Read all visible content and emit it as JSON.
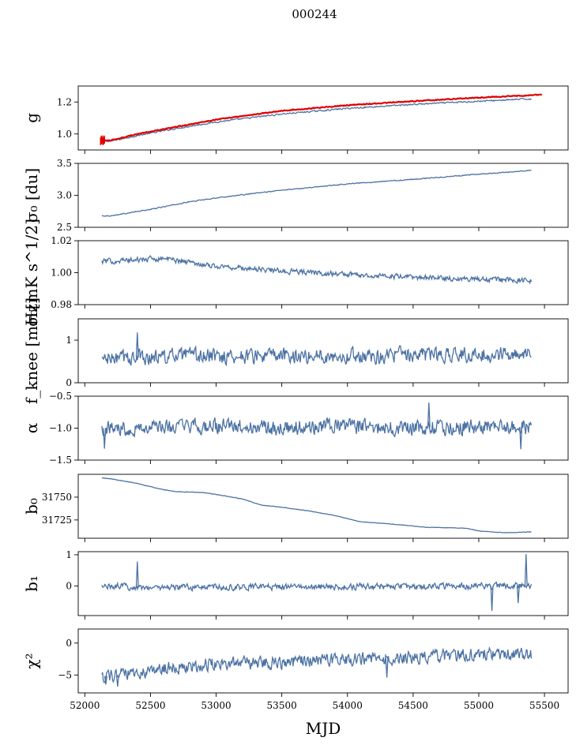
{
  "figure": {
    "suptitle": "000244",
    "xlabel": "MJD"
  },
  "colors": {
    "series": "#4c72a4",
    "overlay": "#e00000",
    "axes": "#000000"
  },
  "chart_data": [
    {
      "type": "line",
      "id": "g",
      "ylabel": "g",
      "xlim": [
        51950,
        55680
      ],
      "ylim": [
        0.9,
        1.3
      ],
      "yticks": [
        1.0,
        1.2
      ],
      "ytick_labels": [
        "1.0",
        "1.2"
      ],
      "series": [
        {
          "name": "",
          "color": "#4c72a4",
          "x": [
            52130,
            52200,
            52400,
            52700,
            53000,
            53500,
            54000,
            54500,
            55000,
            55400
          ],
          "y": [
            0.955,
            0.955,
            0.99,
            1.035,
            1.075,
            1.125,
            1.16,
            1.185,
            1.205,
            1.22
          ]
        },
        {
          "name": "",
          "color": "#e00000",
          "x": [
            52130,
            52200,
            52400,
            52700,
            53000,
            53500,
            54000,
            54500,
            55000,
            55480
          ],
          "y": [
            0.96,
            0.96,
            1.0,
            1.045,
            1.09,
            1.145,
            1.18,
            1.205,
            1.228,
            1.245
          ]
        }
      ]
    },
    {
      "type": "line",
      "id": "sigma0_du",
      "ylabel": "σ₀ [du]",
      "xlim": [
        51950,
        55680
      ],
      "ylim": [
        2.5,
        3.5
      ],
      "yticks": [
        2.5,
        3.0,
        3.5
      ],
      "ytick_labels": [
        "2.5",
        "3.0",
        "3.5"
      ],
      "series": [
        {
          "name": "",
          "color": "#4c72a4",
          "x": [
            52130,
            52200,
            52500,
            52800,
            53000,
            53500,
            54000,
            54500,
            55000,
            55400
          ],
          "y": [
            2.68,
            2.68,
            2.78,
            2.9,
            2.96,
            3.08,
            3.18,
            3.25,
            3.33,
            3.39
          ]
        }
      ]
    },
    {
      "type": "line",
      "id": "sigma0_mk",
      "ylabel": "σ₀[mK s^1/2]",
      "xlim": [
        51950,
        55680
      ],
      "ylim": [
        0.98,
        1.02
      ],
      "yticks": [
        0.98,
        1.0,
        1.02
      ],
      "ytick_labels": [
        "0.98",
        "1.00",
        "1.02"
      ],
      "series": [
        {
          "name": "",
          "color": "#4c72a4",
          "x": [
            52130,
            52400,
            52600,
            53000,
            53500,
            54000,
            54500,
            55000,
            55400
          ],
          "y": [
            1.007,
            1.008,
            1.009,
            1.004,
            1.001,
            0.999,
            0.997,
            0.996,
            0.995
          ]
        }
      ]
    },
    {
      "type": "line",
      "id": "fknee",
      "ylabel": "f_knee [mHz]",
      "xlim": [
        51950,
        55680
      ],
      "ylim": [
        0,
        1.5
      ],
      "yticks": [
        0,
        1
      ],
      "ytick_labels": [
        "0",
        "1"
      ],
      "series": [
        {
          "name": "",
          "color": "#4c72a4",
          "x": [
            52130,
            52400,
            52700,
            53000,
            53500,
            54000,
            54500,
            55000,
            55400
          ],
          "y": [
            0.55,
            0.6,
            0.62,
            0.62,
            0.63,
            0.64,
            0.65,
            0.66,
            0.67
          ]
        }
      ]
    },
    {
      "type": "line",
      "id": "alpha",
      "ylabel": "α",
      "xlim": [
        51950,
        55680
      ],
      "ylim": [
        -1.5,
        -0.5
      ],
      "yticks": [
        -1.5,
        -1.0,
        -0.5
      ],
      "ytick_labels": [
        "−1.5",
        "−1.0",
        "−0.5"
      ],
      "series": [
        {
          "name": "",
          "color": "#4c72a4",
          "x": [
            52130,
            52500,
            53000,
            53500,
            54000,
            54500,
            55000,
            55400
          ],
          "y": [
            -1.0,
            -0.99,
            -0.98,
            -0.99,
            -0.98,
            -0.99,
            -0.98,
            -0.98
          ]
        }
      ]
    },
    {
      "type": "line",
      "id": "b0",
      "ylabel": "b₀",
      "xlim": [
        51950,
        55680
      ],
      "ylim": [
        31705,
        31775
      ],
      "yticks": [
        31725,
        31750
      ],
      "ytick_labels": [
        "31725",
        "31750"
      ],
      "series": [
        {
          "name": "",
          "color": "#4c72a4",
          "x": [
            52130,
            52200,
            52400,
            52600,
            52700,
            52900,
            53000,
            53200,
            53350,
            53500,
            53700,
            53900,
            54100,
            54300,
            54600,
            54900,
            55000,
            55200,
            55400
          ],
          "y": [
            31771,
            31770,
            31765,
            31758,
            31756,
            31755,
            31753,
            31748,
            31741,
            31739,
            31735,
            31730,
            31723,
            31721,
            31717,
            31716,
            31713,
            31711,
            31712
          ]
        }
      ]
    },
    {
      "type": "line",
      "id": "b1",
      "ylabel": "b₁",
      "xlim": [
        51950,
        55680
      ],
      "ylim": [
        -0.95,
        1.1
      ],
      "yticks": [
        0,
        1
      ],
      "ytick_labels": [
        "0",
        "1"
      ],
      "series": [
        {
          "name": "",
          "color": "#4c72a4",
          "x": [
            52130,
            52500,
            53000,
            53500,
            54000,
            54500,
            55000,
            55400
          ],
          "y": [
            0.0,
            -0.05,
            -0.03,
            -0.04,
            -0.02,
            -0.03,
            0.0,
            0.0
          ]
        }
      ]
    },
    {
      "type": "line",
      "id": "chi2",
      "ylabel": "χ²",
      "xlim": [
        51950,
        55680
      ],
      "ylim": [
        -7.8,
        2.2
      ],
      "yticks": [
        -5,
        0
      ],
      "ytick_labels": [
        "−5",
        "0"
      ],
      "xticks": [
        52000,
        52500,
        53000,
        53500,
        54000,
        54500,
        55000,
        55500
      ],
      "xtick_labels": [
        "52000",
        "52500",
        "53000",
        "53500",
        "54000",
        "54500",
        "55000",
        "55500"
      ],
      "series": [
        {
          "name": "",
          "color": "#4c72a4",
          "x": [
            52130,
            52300,
            52600,
            53000,
            53500,
            54000,
            54500,
            55000,
            55400
          ],
          "y": [
            -5.2,
            -5.0,
            -4.0,
            -3.2,
            -3.0,
            -2.5,
            -2.3,
            -1.7,
            -1.8
          ]
        }
      ]
    }
  ]
}
